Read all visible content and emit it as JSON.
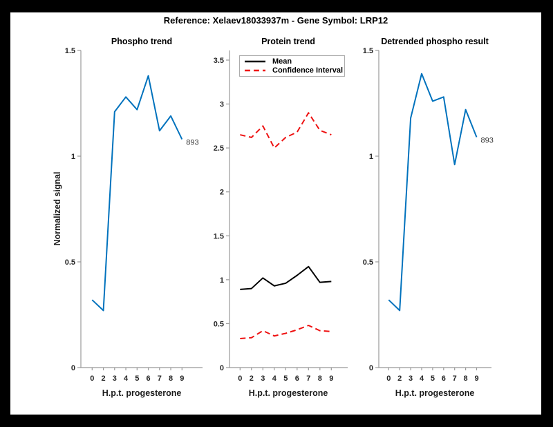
{
  "figure_title": "Reference:  Xelaev18033937m - Gene Symbol:  LRP12",
  "chart_data": [
    {
      "type": "line",
      "title": "Phospho trend",
      "xlabel": "H.p.t. progesterone",
      "ylabel": "Normalized signal",
      "x_tick_labels": [
        "0",
        "2",
        "3",
        "4",
        "5",
        "6",
        "7",
        "8",
        "9"
      ],
      "y_ticks": [
        "0",
        "0.5",
        "1",
        "1.5"
      ],
      "ylim": [
        0,
        1.5
      ],
      "grid": false,
      "series": [
        {
          "name": "phospho-signal",
          "color": "#0072BD",
          "style": "solid",
          "values": [
            0.32,
            0.27,
            1.21,
            1.28,
            1.22,
            1.38,
            1.12,
            1.19,
            1.08
          ]
        }
      ],
      "end_label": "893"
    },
    {
      "type": "line",
      "title": "Protein trend",
      "xlabel": "H.p.t. progesterone",
      "ylabel": "",
      "x_tick_labels": [
        "0",
        "2",
        "3",
        "4",
        "5",
        "6",
        "7",
        "8",
        "9"
      ],
      "y_ticks": [
        "0",
        "0.5",
        "1",
        "1.5",
        "2",
        "2.5",
        "3",
        "3.5"
      ],
      "ylim": [
        0,
        3.61
      ],
      "grid": false,
      "series": [
        {
          "name": "mean",
          "color": "#000000",
          "style": "solid",
          "values": [
            0.89,
            0.9,
            1.02,
            0.93,
            0.96,
            1.05,
            1.15,
            0.97,
            0.98
          ]
        },
        {
          "name": "ci-upper",
          "color": "#EE1111",
          "style": "dashed",
          "values": [
            2.65,
            2.62,
            2.75,
            2.5,
            2.62,
            2.68,
            2.9,
            2.7,
            2.65
          ]
        },
        {
          "name": "ci-lower",
          "color": "#EE1111",
          "style": "dashed",
          "values": [
            0.33,
            0.34,
            0.42,
            0.36,
            0.39,
            0.43,
            0.48,
            0.42,
            0.41
          ]
        }
      ],
      "legend": {
        "position": "top-left",
        "entries": [
          {
            "label": "Mean",
            "color": "#000000",
            "style": "solid"
          },
          {
            "label": "Confidence Interval",
            "color": "#EE1111",
            "style": "dashed"
          }
        ]
      },
      "end_label": null
    },
    {
      "type": "line",
      "title": "Detrended phospho result",
      "xlabel": "H.p.t. progesterone",
      "ylabel": "",
      "x_tick_labels": [
        "0",
        "2",
        "3",
        "4",
        "5",
        "6",
        "7",
        "8",
        "9"
      ],
      "y_ticks": [
        "0",
        "0.5",
        "1",
        "1.5"
      ],
      "ylim": [
        0,
        1.5
      ],
      "grid": false,
      "series": [
        {
          "name": "detrended-phospho",
          "color": "#0072BD",
          "style": "solid",
          "values": [
            0.32,
            0.27,
            1.18,
            1.39,
            1.26,
            1.28,
            0.96,
            1.22,
            1.09
          ]
        }
      ],
      "end_label": "893"
    }
  ],
  "colors": {
    "line_blue": "#0072BD",
    "line_red": "#EE1111",
    "line_black": "#000000",
    "axis": "#999999",
    "tick_text": "#262626",
    "figure_bg": "#ffffff",
    "border_bg": "#000000"
  }
}
